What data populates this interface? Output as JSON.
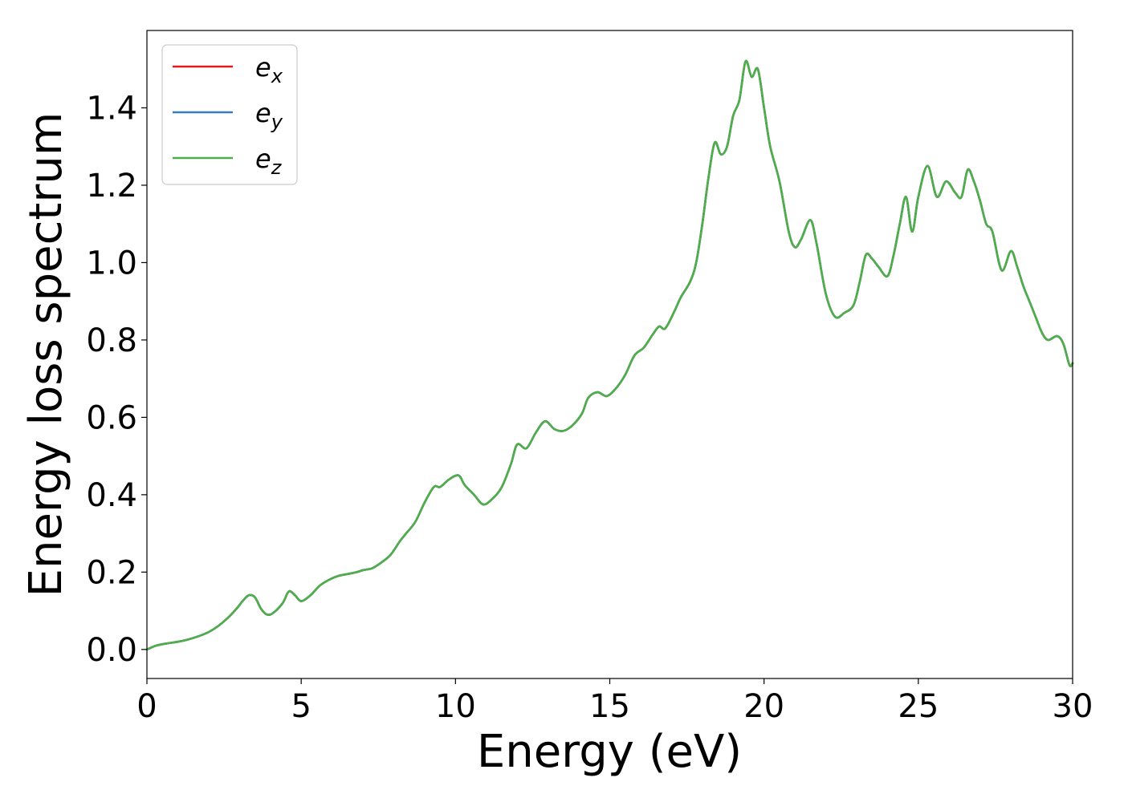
{
  "chart_data": {
    "type": "line",
    "xlabel": "Energy (eV)",
    "ylabel": "Energy loss spectrum",
    "xlim": [
      0,
      30
    ],
    "ylim": [
      -0.075,
      1.6
    ],
    "xticks": [
      0,
      5,
      10,
      15,
      20,
      25,
      30
    ],
    "xtick_labels": [
      "0",
      "5",
      "10",
      "15",
      "20",
      "25",
      "30"
    ],
    "yticks": [
      0.0,
      0.2,
      0.4,
      0.6,
      0.8,
      1.0,
      1.2,
      1.4
    ],
    "ytick_labels": [
      "0.0",
      "0.2",
      "0.4",
      "0.6",
      "0.8",
      "1.0",
      "1.2",
      "1.4"
    ],
    "grid": false,
    "legend_position": "top-left",
    "x": [
      0,
      0.3,
      0.6,
      1.0,
      1.3,
      1.7,
      2.0,
      2.3,
      2.6,
      2.9,
      3.1,
      3.3,
      3.5,
      3.7,
      3.9,
      4.1,
      4.4,
      4.6,
      4.8,
      5.0,
      5.3,
      5.6,
      5.9,
      6.2,
      6.5,
      6.8,
      7.0,
      7.3,
      7.6,
      7.9,
      8.2,
      8.4,
      8.7,
      9.0,
      9.3,
      9.5,
      9.8,
      10.1,
      10.3,
      10.6,
      10.9,
      11.2,
      11.5,
      11.8,
      12.0,
      12.3,
      12.6,
      12.9,
      13.2,
      13.5,
      13.8,
      14.1,
      14.3,
      14.6,
      14.9,
      15.2,
      15.5,
      15.8,
      16.1,
      16.4,
      16.6,
      16.8,
      17.1,
      17.3,
      17.6,
      17.8,
      18.0,
      18.2,
      18.4,
      18.6,
      18.8,
      19.0,
      19.2,
      19.4,
      19.6,
      19.8,
      20.0,
      20.2,
      20.5,
      20.8,
      21.0,
      21.2,
      21.5,
      21.7,
      22.0,
      22.3,
      22.6,
      22.9,
      23.1,
      23.3,
      23.5,
      23.7,
      24.0,
      24.2,
      24.4,
      24.6,
      24.8,
      25.0,
      25.3,
      25.6,
      25.9,
      26.2,
      26.4,
      26.6,
      26.8,
      27.0,
      27.2,
      27.4,
      27.7,
      28.0,
      28.2,
      28.4,
      28.6,
      28.8,
      29.0,
      29.2,
      29.5,
      29.7,
      29.9,
      30.0
    ],
    "series": [
      {
        "name": "e_x",
        "color": "#e41a1c",
        "values": [
          0.0,
          0.01,
          0.015,
          0.02,
          0.025,
          0.035,
          0.045,
          0.06,
          0.08,
          0.105,
          0.125,
          0.14,
          0.135,
          0.105,
          0.09,
          0.095,
          0.12,
          0.15,
          0.14,
          0.125,
          0.14,
          0.165,
          0.18,
          0.19,
          0.195,
          0.2,
          0.205,
          0.21,
          0.225,
          0.245,
          0.28,
          0.3,
          0.33,
          0.38,
          0.42,
          0.42,
          0.44,
          0.45,
          0.425,
          0.4,
          0.375,
          0.39,
          0.42,
          0.48,
          0.53,
          0.52,
          0.56,
          0.59,
          0.57,
          0.565,
          0.58,
          0.61,
          0.65,
          0.665,
          0.655,
          0.675,
          0.71,
          0.76,
          0.78,
          0.815,
          0.835,
          0.83,
          0.875,
          0.91,
          0.95,
          1.0,
          1.1,
          1.22,
          1.31,
          1.28,
          1.3,
          1.38,
          1.42,
          1.52,
          1.48,
          1.5,
          1.4,
          1.3,
          1.21,
          1.08,
          1.04,
          1.06,
          1.11,
          1.05,
          0.92,
          0.86,
          0.87,
          0.89,
          0.95,
          1.02,
          1.01,
          0.99,
          0.965,
          1.02,
          1.1,
          1.17,
          1.08,
          1.17,
          1.25,
          1.17,
          1.21,
          1.18,
          1.17,
          1.24,
          1.21,
          1.16,
          1.1,
          1.08,
          0.98,
          1.03,
          0.99,
          0.94,
          0.9,
          0.86,
          0.82,
          0.8,
          0.81,
          0.79,
          0.735,
          0.74
        ]
      },
      {
        "name": "e_y",
        "color": "#377eb8",
        "values": [
          0.0,
          0.01,
          0.015,
          0.02,
          0.025,
          0.035,
          0.045,
          0.06,
          0.08,
          0.105,
          0.125,
          0.14,
          0.135,
          0.105,
          0.09,
          0.095,
          0.12,
          0.15,
          0.14,
          0.125,
          0.14,
          0.165,
          0.18,
          0.19,
          0.195,
          0.2,
          0.205,
          0.21,
          0.225,
          0.245,
          0.28,
          0.3,
          0.33,
          0.38,
          0.42,
          0.42,
          0.44,
          0.45,
          0.425,
          0.4,
          0.375,
          0.39,
          0.42,
          0.48,
          0.53,
          0.52,
          0.56,
          0.59,
          0.57,
          0.565,
          0.58,
          0.61,
          0.65,
          0.665,
          0.655,
          0.675,
          0.71,
          0.76,
          0.78,
          0.815,
          0.835,
          0.83,
          0.875,
          0.91,
          0.95,
          1.0,
          1.1,
          1.22,
          1.31,
          1.28,
          1.3,
          1.38,
          1.42,
          1.52,
          1.48,
          1.5,
          1.4,
          1.3,
          1.21,
          1.08,
          1.04,
          1.06,
          1.11,
          1.05,
          0.92,
          0.86,
          0.87,
          0.89,
          0.95,
          1.02,
          1.01,
          0.99,
          0.965,
          1.02,
          1.1,
          1.17,
          1.08,
          1.17,
          1.25,
          1.17,
          1.21,
          1.18,
          1.17,
          1.24,
          1.21,
          1.16,
          1.1,
          1.08,
          0.98,
          1.03,
          0.99,
          0.94,
          0.9,
          0.86,
          0.82,
          0.8,
          0.81,
          0.79,
          0.735,
          0.74
        ]
      },
      {
        "name": "e_z",
        "color": "#4daf4a",
        "values": [
          0.0,
          0.01,
          0.015,
          0.02,
          0.025,
          0.035,
          0.045,
          0.06,
          0.08,
          0.105,
          0.125,
          0.14,
          0.135,
          0.105,
          0.09,
          0.095,
          0.12,
          0.15,
          0.14,
          0.125,
          0.14,
          0.165,
          0.18,
          0.19,
          0.195,
          0.2,
          0.205,
          0.21,
          0.225,
          0.245,
          0.28,
          0.3,
          0.33,
          0.38,
          0.42,
          0.42,
          0.44,
          0.45,
          0.425,
          0.4,
          0.375,
          0.39,
          0.42,
          0.48,
          0.53,
          0.52,
          0.56,
          0.59,
          0.57,
          0.565,
          0.58,
          0.61,
          0.65,
          0.665,
          0.655,
          0.675,
          0.71,
          0.76,
          0.78,
          0.815,
          0.835,
          0.83,
          0.875,
          0.91,
          0.95,
          1.0,
          1.1,
          1.22,
          1.31,
          1.28,
          1.3,
          1.38,
          1.42,
          1.52,
          1.48,
          1.5,
          1.4,
          1.3,
          1.21,
          1.08,
          1.04,
          1.06,
          1.11,
          1.05,
          0.92,
          0.86,
          0.87,
          0.89,
          0.95,
          1.02,
          1.01,
          0.99,
          0.965,
          1.02,
          1.1,
          1.17,
          1.08,
          1.17,
          1.25,
          1.17,
          1.21,
          1.18,
          1.17,
          1.24,
          1.21,
          1.16,
          1.1,
          1.08,
          0.98,
          1.03,
          0.99,
          0.94,
          0.9,
          0.86,
          0.82,
          0.8,
          0.81,
          0.79,
          0.735,
          0.74
        ]
      }
    ],
    "legend": [
      {
        "base": "e",
        "sub": "x",
        "color": "#e41a1c"
      },
      {
        "base": "e",
        "sub": "y",
        "color": "#377eb8"
      },
      {
        "base": "e",
        "sub": "z",
        "color": "#4daf4a"
      }
    ]
  }
}
